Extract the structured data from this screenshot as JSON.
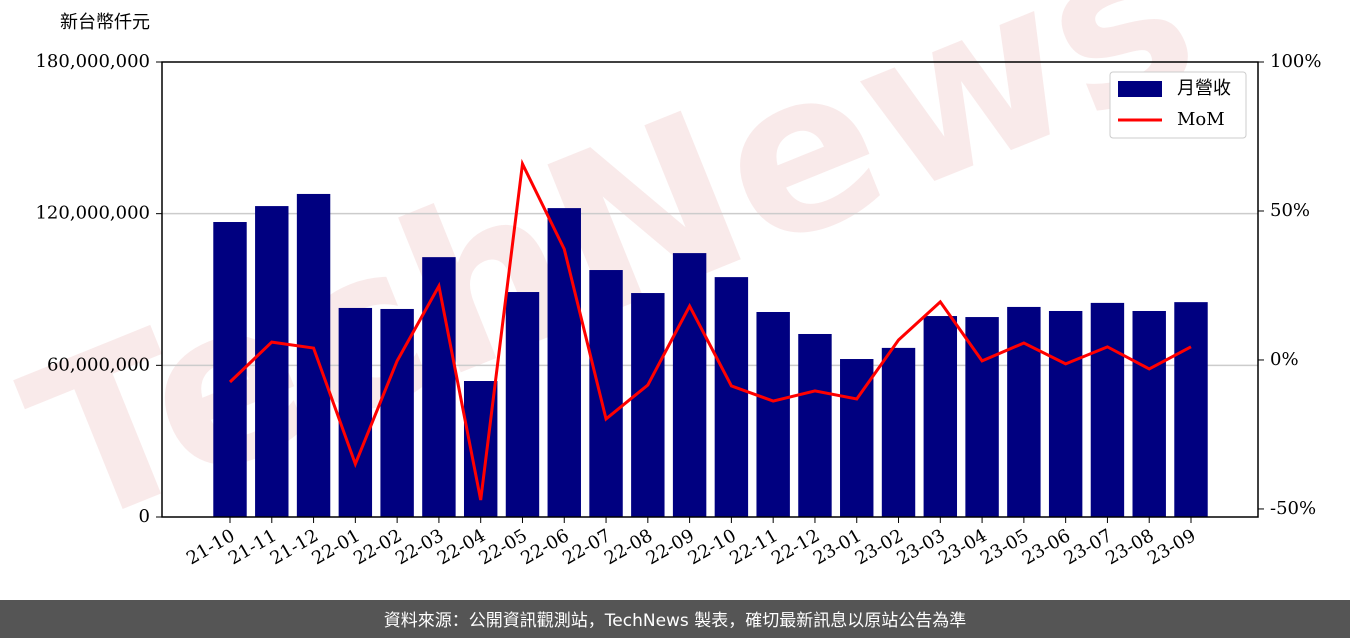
{
  "chart_data": {
    "type": "bar_line",
    "unit_label": "新台幣仟元",
    "watermark": "TechNews",
    "categories": [
      "21-10",
      "21-11",
      "21-12",
      "22-01",
      "22-02",
      "22-03",
      "22-04",
      "22-05",
      "22-06",
      "22-07",
      "22-08",
      "22-09",
      "22-10",
      "22-11",
      "22-12",
      "23-01",
      "23-02",
      "23-03",
      "23-04",
      "23-05",
      "23-06",
      "23-07",
      "23-08",
      "23-09"
    ],
    "series": [
      {
        "name": "月營收",
        "type": "bar",
        "color": "#000080",
        "values": [
          116700000,
          123000000,
          127800000,
          82700000,
          82300000,
          102800000,
          53800000,
          89000000,
          122200000,
          97700000,
          88600000,
          104400000,
          94900000,
          81100000,
          72400000,
          62500000,
          66900000,
          79500000,
          79100000,
          83100000,
          81500000,
          84700000,
          81500000,
          85000000
        ]
      },
      {
        "name": "MoM",
        "type": "line",
        "axis": "y2",
        "color": "#ff0000",
        "values": [
          -7.4,
          6.0,
          4.0,
          -34.9,
          -0.3,
          24.8,
          -47.0,
          65.8,
          37.2,
          -19.8,
          -8.4,
          18.1,
          -8.7,
          -13.8,
          -10.4,
          -13.1,
          6.7,
          19.5,
          -0.3,
          5.7,
          -1.3,
          4.4,
          -3.0,
          4.4
        ]
      }
    ],
    "ylim": [
      0,
      180000000
    ],
    "yticks": [
      0,
      {
        "value": 60000000,
        "label": "60,000,000"
      },
      {
        "value": 120000000,
        "label": "120,000,000"
      },
      {
        "value": 180000000,
        "label": "180,000,000"
      }
    ],
    "y2lim": [
      -52.7,
      100
    ],
    "y2ticks": [
      {
        "value": -50,
        "label": "-50%"
      },
      {
        "value": 0,
        "label": "0%"
      },
      {
        "value": 50,
        "label": "50%"
      },
      {
        "value": 100,
        "label": "100%"
      }
    ],
    "grid": true,
    "legend": "upper right",
    "footer": "資料來源：公開資訊觀測站，TechNews 製表，確切最新訊息以原站公告為準"
  }
}
